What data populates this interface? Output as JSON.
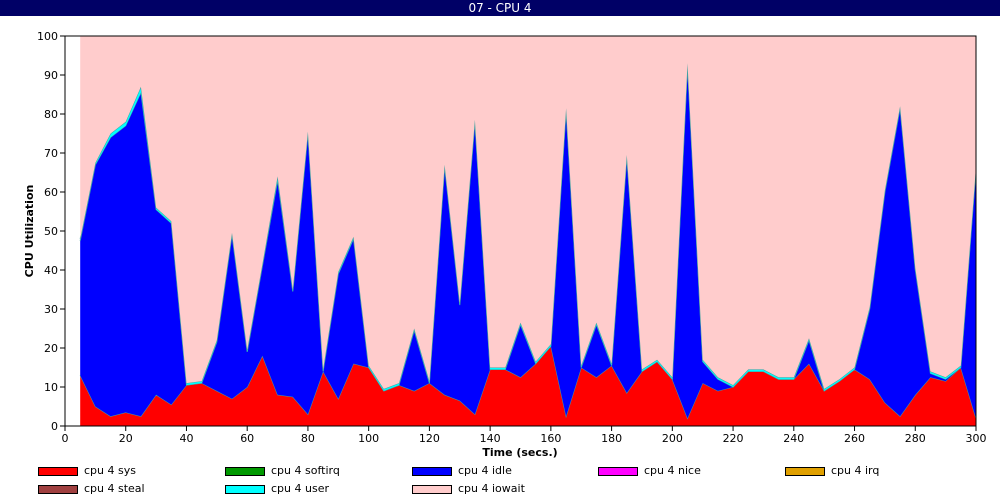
{
  "window": {
    "title": "07 - CPU 4"
  },
  "chart_data": {
    "type": "area",
    "title": "",
    "xlabel": "Time (secs.)",
    "ylabel": "CPU Utilization",
    "xlim": [
      0,
      300
    ],
    "ylim": [
      0,
      100
    ],
    "x_ticks": [
      0,
      20,
      40,
      60,
      80,
      100,
      120,
      140,
      160,
      180,
      200,
      220,
      240,
      260,
      280,
      300
    ],
    "y_ticks": [
      0,
      10,
      20,
      30,
      40,
      50,
      60,
      70,
      80,
      90,
      100
    ],
    "grid": false,
    "stacked": true,
    "legend_position": "bottom",
    "x": [
      5,
      10,
      15,
      20,
      25,
      30,
      35,
      40,
      45,
      50,
      55,
      60,
      65,
      70,
      75,
      80,
      85,
      90,
      95,
      100,
      105,
      110,
      115,
      120,
      125,
      130,
      135,
      140,
      145,
      150,
      155,
      160,
      165,
      170,
      175,
      180,
      185,
      190,
      195,
      200,
      205,
      210,
      215,
      220,
      225,
      230,
      235,
      240,
      245,
      250,
      255,
      260,
      265,
      270,
      275,
      280,
      285,
      290,
      295,
      300
    ],
    "series": [
      {
        "name": "cpu 4 sys",
        "color": "#ff0000",
        "values": [
          13,
          5,
          2.5,
          3.5,
          2.5,
          8,
          5.5,
          10.5,
          11,
          9,
          7,
          10,
          18,
          8,
          7.5,
          3,
          14,
          7,
          16,
          15,
          9,
          10.5,
          9,
          11,
          8,
          6.5,
          3,
          14.5,
          14.5,
          12.5,
          16,
          20.5,
          2.5,
          15,
          12.5,
          15.5,
          8.5,
          14,
          16.5,
          12,
          2,
          11,
          9,
          10,
          14,
          14,
          12,
          12,
          16,
          9,
          11.5,
          14.5,
          12,
          6,
          2.5,
          8,
          12.5,
          11.5,
          15,
          2
        ]
      },
      {
        "name": "cpu 4 softirq",
        "color": "#009900",
        "values": [
          0,
          0,
          0,
          0,
          0,
          0,
          0,
          0,
          0,
          0,
          0,
          0,
          0,
          0,
          0,
          0,
          0,
          0,
          0,
          0,
          0,
          0,
          0,
          0,
          0,
          0,
          0,
          0,
          0,
          0,
          0,
          0,
          0,
          0,
          0,
          0,
          0,
          0,
          0,
          0,
          0,
          0,
          0,
          0,
          0,
          0,
          0,
          0,
          0,
          0,
          0,
          0,
          0,
          0,
          0,
          0,
          0,
          0,
          0,
          0
        ]
      },
      {
        "name": "cpu 4 idle",
        "color": "#0000ff",
        "values": [
          34.5,
          62,
          71.5,
          73.5,
          83,
          47.5,
          46.5,
          0,
          0,
          12.5,
          42,
          9,
          23,
          55,
          27,
          72,
          0,
          32,
          32,
          0,
          0,
          0,
          15.5,
          0,
          58.5,
          24.5,
          75,
          0,
          0,
          13.5,
          0,
          0,
          78.5,
          0,
          13.5,
          0,
          60.5,
          0,
          0,
          0,
          90.5,
          5.5,
          3,
          0,
          0,
          0,
          0,
          0,
          6,
          0,
          0,
          0,
          18,
          54,
          79,
          32,
          1,
          0.5,
          0,
          64
        ]
      },
      {
        "name": "cpu 4 nice",
        "color": "#ff00ff",
        "values": [
          0,
          0,
          0,
          0,
          0,
          0,
          0,
          0,
          0,
          0,
          0,
          0,
          0,
          0,
          0,
          0,
          0,
          0,
          0,
          0,
          0,
          0,
          0,
          0,
          0,
          0,
          0,
          0,
          0,
          0,
          0,
          0,
          0,
          0,
          0,
          0,
          0,
          0,
          0,
          0,
          0,
          0,
          0,
          0,
          0,
          0,
          0,
          0,
          0,
          0,
          0,
          0,
          0,
          0,
          0,
          0,
          0,
          0,
          0,
          0
        ]
      },
      {
        "name": "cpu 4 irq",
        "color": "#e0a000",
        "values": [
          0,
          0,
          0,
          0,
          0,
          0,
          0,
          0,
          0,
          0,
          0,
          0,
          0,
          0,
          0,
          0,
          0,
          0,
          0,
          0,
          0,
          0,
          0,
          0,
          0,
          0,
          0,
          0,
          0,
          0,
          0,
          0,
          0,
          0,
          0,
          0,
          0,
          0,
          0,
          0,
          0,
          0,
          0,
          0,
          0,
          0,
          0,
          0,
          0,
          0,
          0,
          0,
          0,
          0,
          0,
          0,
          0,
          0,
          0,
          0
        ]
      },
      {
        "name": "cpu 4 steal",
        "color": "#a04040",
        "values": [
          0,
          0,
          0,
          0,
          0,
          0,
          0,
          0,
          0,
          0,
          0,
          0,
          0,
          0,
          0,
          0,
          0,
          0,
          0,
          0,
          0,
          0,
          0,
          0,
          0,
          0,
          0,
          0,
          0,
          0,
          0,
          0,
          0,
          0,
          0,
          0,
          0,
          0,
          0,
          0,
          0,
          0,
          0,
          0,
          0,
          0,
          0,
          0,
          0,
          0,
          0,
          0,
          0,
          0,
          0,
          0,
          0,
          0,
          0,
          0
        ]
      },
      {
        "name": "cpu 4 user",
        "color": "#00ffff",
        "values": [
          0.5,
          0.5,
          1,
          1,
          1.5,
          0.5,
          0.5,
          0.5,
          0.5,
          0.5,
          0.5,
          0.5,
          0.5,
          1,
          0.5,
          0.5,
          0.5,
          0.5,
          0.5,
          0.5,
          0.5,
          0.5,
          0.5,
          0.5,
          0.5,
          0.5,
          0.5,
          0.5,
          0.5,
          0.5,
          0.5,
          0.5,
          0.5,
          0.5,
          0.5,
          0.5,
          0.5,
          0.5,
          0.5,
          0.5,
          0.5,
          0.5,
          0.5,
          0.5,
          0.5,
          0.5,
          0.5,
          0.5,
          0.5,
          0.5,
          0.5,
          0.5,
          0.5,
          0.5,
          0.5,
          0.5,
          0.5,
          0.5,
          0.5,
          0.5
        ]
      },
      {
        "name": "cpu 4 iowait",
        "color": "#ffcccc",
        "values": [
          52,
          32.5,
          25,
          22,
          13,
          44,
          47.5,
          89,
          88.5,
          78,
          50.5,
          80.5,
          58.5,
          36,
          65,
          24.5,
          85.5,
          60.5,
          51.5,
          84.5,
          90.5,
          89,
          75,
          88.5,
          33,
          68.5,
          21.5,
          85,
          85,
          73.5,
          83.5,
          79,
          18.5,
          84.5,
          73.5,
          84,
          30.5,
          85.5,
          83,
          87.5,
          7,
          83,
          87.5,
          89.5,
          85.5,
          85.5,
          87.5,
          87.5,
          77.5,
          90.5,
          88,
          85,
          69.5,
          39.5,
          18,
          59.5,
          86,
          87.5,
          84.5,
          33.5
        ]
      }
    ]
  }
}
